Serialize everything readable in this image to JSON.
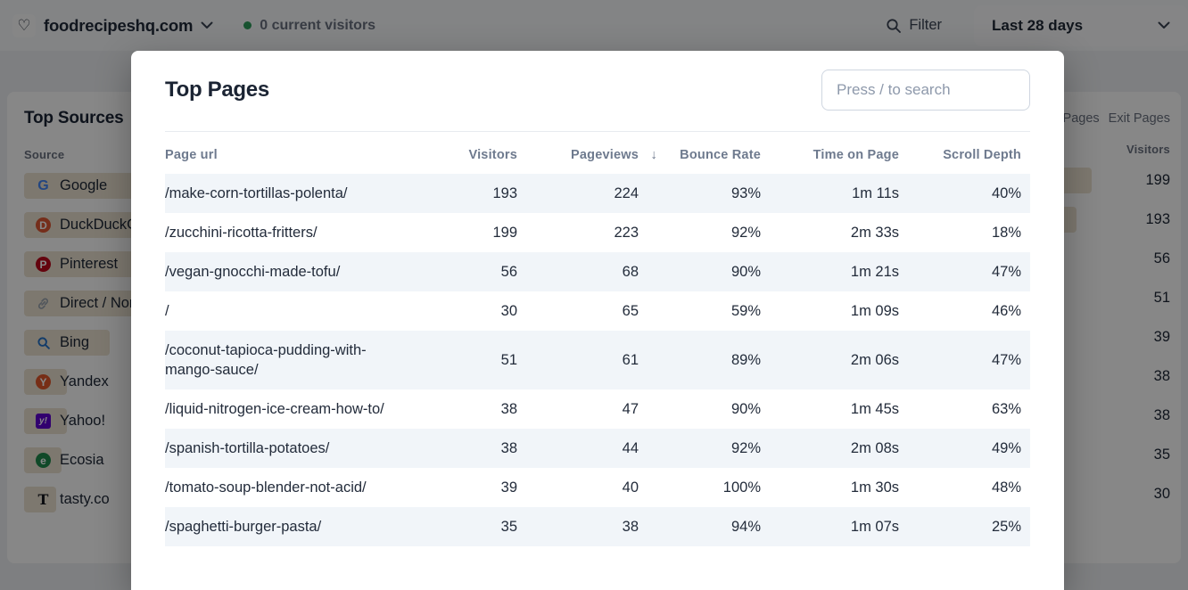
{
  "topbar": {
    "site_name": "foodrecipeshq.com",
    "current_visitors": "0 current visitors",
    "filter_label": "Filter",
    "date_range": "Last 28 days"
  },
  "sources_card": {
    "title": "Top Sources",
    "column_label": "Source",
    "items": [
      {
        "name": "Google",
        "icon": "google-icon",
        "style": "plain",
        "letter": "G",
        "color": "#4285f4",
        "fg": "#4285f4",
        "bar_pct": 100
      },
      {
        "name": "DuckDuckGo",
        "icon": "duckduckgo-icon",
        "style": "circle",
        "letter": "D",
        "color": "#de5833",
        "fg": "#ffffff",
        "bar_pct": 97
      },
      {
        "name": "Pinterest",
        "icon": "pinterest-icon",
        "style": "circle",
        "letter": "P",
        "color": "#bd081c",
        "fg": "#ffffff",
        "bar_pct": 29
      },
      {
        "name": "Direct / None",
        "icon": "link-icon",
        "style": "link",
        "letter": "",
        "color": "#9aa3af",
        "fg": "#9aa3af",
        "bar_pct": 27
      },
      {
        "name": "Bing",
        "icon": "bing-search-icon",
        "style": "search",
        "letter": "",
        "color": "#2472c8",
        "fg": "#2472c8",
        "bar_pct": 16
      },
      {
        "name": "Yandex",
        "icon": "yandex-icon",
        "style": "circle",
        "letter": "Y",
        "color": "#e0572b",
        "fg": "#ffffff",
        "bar_pct": 8
      },
      {
        "name": "Yahoo!",
        "icon": "yahoo-icon",
        "style": "square",
        "letter": "y!",
        "color": "#5f01d1",
        "fg": "#ffffff",
        "bar_pct": 8
      },
      {
        "name": "Ecosia",
        "icon": "ecosia-icon",
        "style": "circle",
        "letter": "e",
        "color": "#1f8a4c",
        "fg": "#ffffff",
        "bar_pct": 7
      },
      {
        "name": "tasty.co",
        "icon": "tasty-icon",
        "style": "plain-serif",
        "letter": "T",
        "color": "#15181d",
        "fg": "#15181d",
        "bar_pct": 6
      }
    ]
  },
  "pages_card": {
    "tabs": [
      "Pages",
      "Exit Pages"
    ],
    "column_label": "Visitors",
    "rows": [
      {
        "visitors": "199",
        "bar_pct": 100
      },
      {
        "visitors": "193",
        "bar_pct": 97
      },
      {
        "visitors": "56",
        "bar_pct": 28
      },
      {
        "visitors": "51",
        "bar_pct": 26
      },
      {
        "visitors": "39",
        "bar_pct": 20
      },
      {
        "visitors": "38",
        "bar_pct": 19
      },
      {
        "visitors": "38",
        "bar_pct": 19
      },
      {
        "visitors": "35",
        "bar_pct": 18
      },
      {
        "visitors": "30",
        "bar_pct": 15
      }
    ]
  },
  "modal": {
    "title": "Top Pages",
    "search_placeholder": "Press / to search",
    "table": {
      "headers": [
        "Page url",
        "Visitors",
        "Pageviews",
        "Bounce Rate",
        "Time on Page",
        "Scroll Depth"
      ],
      "sorted_by": "Pageviews",
      "sort_arrow": "↓",
      "rows": [
        {
          "url": "/make-corn-tortillas-polenta/",
          "visitors": "193",
          "pageviews": "224",
          "bounce_rate": "93%",
          "time_on_page": "1m 11s",
          "scroll_depth": "40%"
        },
        {
          "url": "/zucchini-ricotta-fritters/",
          "visitors": "199",
          "pageviews": "223",
          "bounce_rate": "92%",
          "time_on_page": "2m 33s",
          "scroll_depth": "18%"
        },
        {
          "url": "/vegan-gnocchi-made-tofu/",
          "visitors": "56",
          "pageviews": "68",
          "bounce_rate": "90%",
          "time_on_page": "1m 21s",
          "scroll_depth": "47%"
        },
        {
          "url": "/",
          "visitors": "30",
          "pageviews": "65",
          "bounce_rate": "59%",
          "time_on_page": "1m 09s",
          "scroll_depth": "46%"
        },
        {
          "url": "/coconut-tapioca-pudding-with-mango-sauce/",
          "visitors": "51",
          "pageviews": "61",
          "bounce_rate": "89%",
          "time_on_page": "2m 06s",
          "scroll_depth": "47%"
        },
        {
          "url": "/liquid-nitrogen-ice-cream-how-to/",
          "visitors": "38",
          "pageviews": "47",
          "bounce_rate": "90%",
          "time_on_page": "1m 45s",
          "scroll_depth": "63%"
        },
        {
          "url": "/spanish-tortilla-potatoes/",
          "visitors": "38",
          "pageviews": "44",
          "bounce_rate": "92%",
          "time_on_page": "2m 08s",
          "scroll_depth": "49%"
        },
        {
          "url": "/tomato-soup-blender-not-acid/",
          "visitors": "39",
          "pageviews": "40",
          "bounce_rate": "100%",
          "time_on_page": "1m 30s",
          "scroll_depth": "48%"
        },
        {
          "url": "/spaghetti-burger-pasta/",
          "visitors": "35",
          "pageviews": "38",
          "bounce_rate": "94%",
          "time_on_page": "1m 07s",
          "scroll_depth": "25%"
        }
      ]
    }
  },
  "colors": {
    "status_green": "#2e9e5b",
    "bar_fill": "#ece3d1",
    "stripe": "#f1f5f9",
    "text_dark": "#1d2636",
    "text_muted": "#6b7280"
  }
}
